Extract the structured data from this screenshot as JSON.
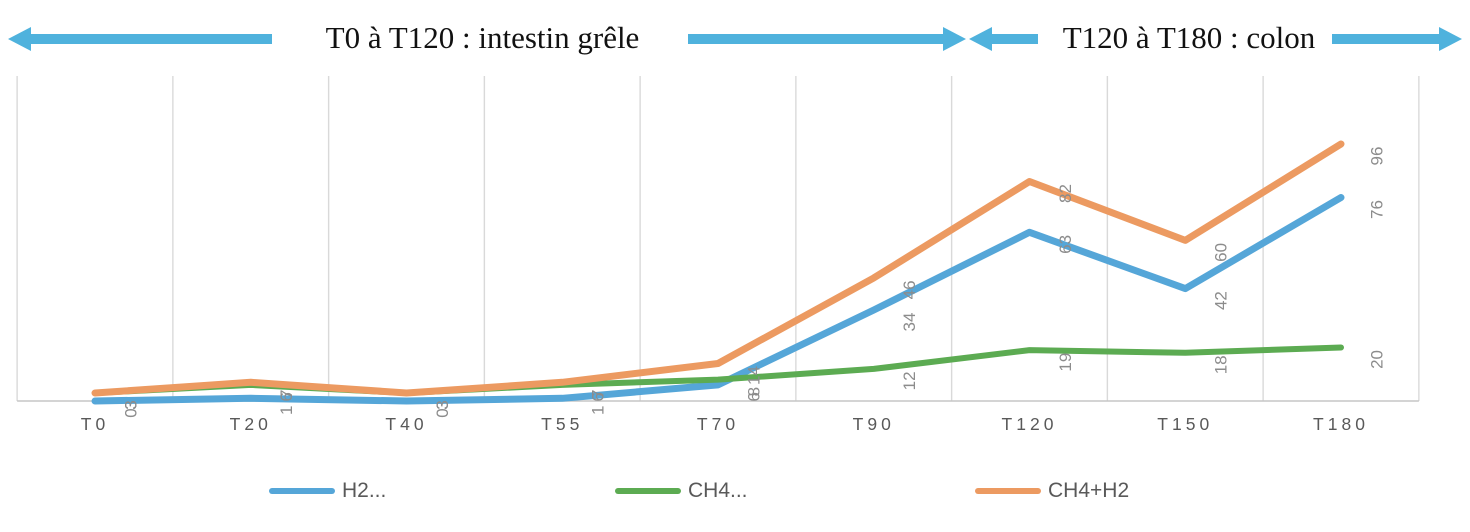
{
  "header": {
    "left_span_label": "T0 à T120 : intestin grêle",
    "right_span_label": "T120 à T180 : colon",
    "arrow_color": "#4FB2DD"
  },
  "legend": {
    "items": [
      {
        "label": "H2...",
        "color": "#55A6D8"
      },
      {
        "label": "CH4...",
        "color": "#5CAB52"
      },
      {
        "label": "CH4+H2",
        "color": "#EC9A61"
      }
    ]
  },
  "chart_data": {
    "type": "line",
    "title": "",
    "xlabel": "",
    "ylabel": "",
    "categories": [
      "T0",
      "T20",
      "T40",
      "T55",
      "T70",
      "T90",
      "T120",
      "T150",
      "T180"
    ],
    "series": [
      {
        "name": "H2...",
        "color": "#55A6D8",
        "stroke_width": 7,
        "values": [
          0,
          1,
          0,
          1,
          6,
          34,
          63,
          42,
          76
        ]
      },
      {
        "name": "CH4...",
        "color": "#5CAB52",
        "stroke_width": 6,
        "values": [
          3,
          6,
          3,
          6,
          8,
          12,
          19,
          18,
          20
        ]
      },
      {
        "name": "CH4+H2",
        "color": "#EC9A61",
        "stroke_width": 7,
        "values": [
          3,
          7,
          3,
          7,
          14,
          46,
          82,
          60,
          96
        ]
      }
    ],
    "ylim": [
      0,
      105
    ],
    "grid": "vertical-between-categories",
    "gridline_color": "#D9D9D9",
    "axis_line_color": "#C6C6C6",
    "x_tick_color": "#595959",
    "data_label_color": "#8C8C8C",
    "data_label_rotation": -90,
    "legend_position": "bottom"
  }
}
